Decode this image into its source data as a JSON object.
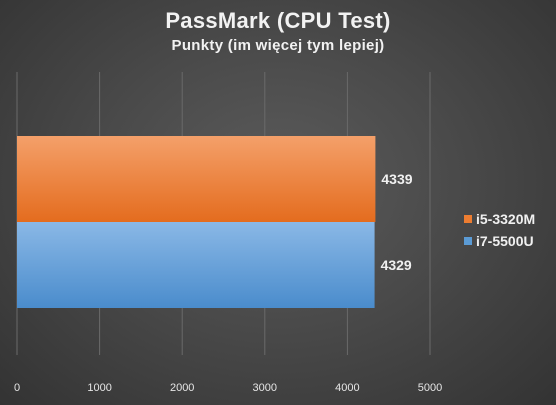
{
  "chart_data": {
    "type": "bar",
    "orientation": "horizontal",
    "title": "PassMark  (CPU Test)",
    "subtitle": "Punkty (im więcej tym lepiej)",
    "xlim": [
      0,
      5000
    ],
    "x_ticks": [
      0,
      1000,
      2000,
      3000,
      4000,
      5000
    ],
    "grid": true,
    "legend_position": "right",
    "series": [
      {
        "name": "i5-3320M",
        "value": 4339,
        "color": "#ed7d31"
      },
      {
        "name": "i7-5500U",
        "value": 4329,
        "color": "#5b9bd5"
      }
    ]
  }
}
